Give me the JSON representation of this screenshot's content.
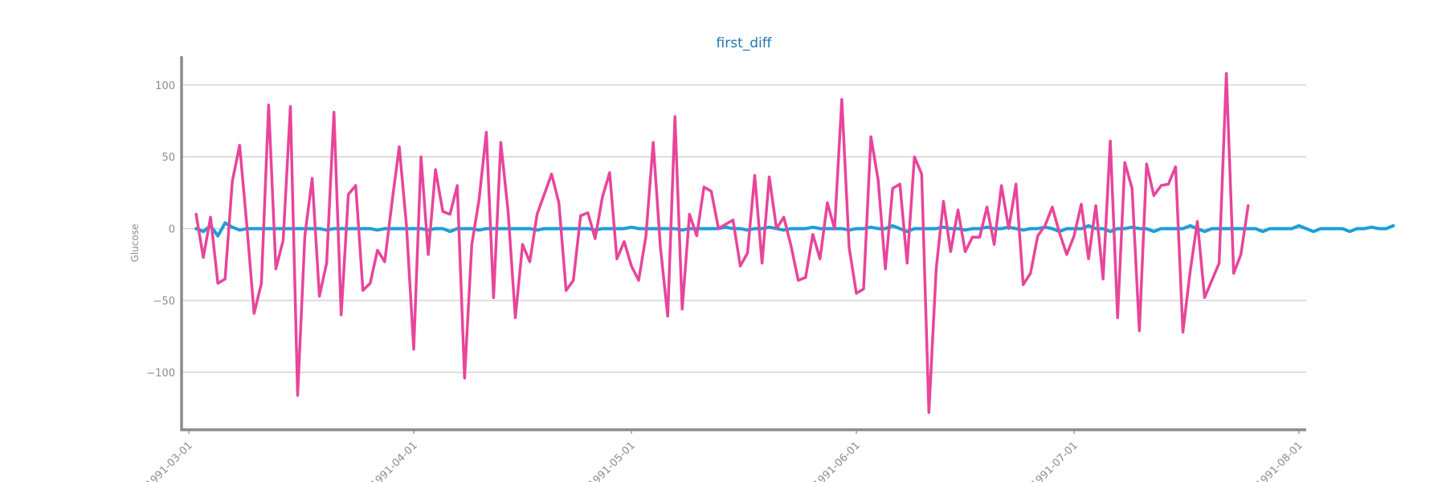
{
  "chart_data": {
    "type": "line",
    "title": "first_diff",
    "xlabel": "",
    "ylabel": "Glucose",
    "grid": true,
    "xlim": [
      "1991-02-28",
      "1991-08-02"
    ],
    "ylim": [
      -140,
      120
    ],
    "x_ticks": [
      "1991-03-01",
      "1991-04-01",
      "1991-05-01",
      "1991-06-01",
      "1991-07-01",
      "1991-08-01"
    ],
    "y_ticks": [
      100,
      50,
      0,
      -50,
      -100
    ],
    "y_tick_labels": [
      "100",
      "50",
      "0",
      "−50",
      "−100"
    ],
    "series": [
      {
        "color": "#1a9fd8",
        "x_start": "1991-03-02",
        "x_step_days": 1,
        "values": [
          0,
          -2,
          2,
          -5,
          4,
          1,
          -1,
          0,
          0,
          0,
          0,
          0,
          0,
          0,
          0,
          0,
          0,
          0,
          -1,
          0,
          0,
          0,
          0,
          0,
          0,
          -1,
          0,
          0,
          0,
          0,
          0,
          0,
          -1,
          0,
          0,
          -2,
          0,
          0,
          0,
          -1,
          0,
          0,
          0,
          0,
          0,
          0,
          0,
          -1,
          0,
          0,
          0,
          0,
          0,
          0,
          0,
          -1,
          0,
          0,
          0,
          0,
          1,
          0,
          0,
          0,
          0,
          0,
          0,
          -1,
          0,
          0,
          0,
          0,
          0,
          1,
          0,
          0,
          -1,
          0,
          0,
          1,
          0,
          -1,
          0,
          0,
          0,
          1,
          0,
          0,
          0,
          0,
          -1,
          0,
          0,
          1,
          0,
          0,
          2,
          0,
          -2,
          0,
          0,
          0,
          0,
          1,
          0,
          0,
          -1,
          0,
          0,
          1,
          0,
          0,
          1,
          0,
          -1,
          0,
          0,
          1,
          0,
          -2,
          0,
          0,
          0,
          2,
          0,
          0,
          -2,
          0,
          0,
          1,
          0,
          0,
          -2,
          0,
          0,
          0,
          0,
          2,
          0,
          -2,
          0,
          0,
          0,
          0,
          0,
          0,
          0,
          -2,
          0,
          0,
          0,
          0,
          2,
          0,
          -2,
          0,
          0,
          0,
          0,
          -2,
          0,
          0,
          1,
          0,
          0,
          2
        ]
      },
      {
        "color": "#e8459b",
        "x_start": "1991-03-02",
        "x_step_days": 1,
        "values": [
          10,
          -20,
          8,
          -38,
          -35,
          33,
          58,
          2,
          -59,
          -38,
          86,
          -28,
          -8,
          85,
          -116,
          -5,
          35,
          -47,
          -24,
          81,
          -60,
          24,
          30,
          -43,
          -38,
          -15,
          -23,
          18,
          57,
          2,
          -84,
          50,
          -18,
          41,
          12,
          10,
          30,
          -104,
          -11,
          20,
          67,
          -48,
          60,
          12,
          -62,
          -11,
          -23,
          10,
          24,
          38,
          18,
          -43,
          -36,
          9,
          11,
          -7,
          22,
          39,
          -21,
          -9,
          -26,
          -36,
          -5,
          60,
          -13,
          -61,
          78,
          -56,
          10,
          -5,
          29,
          26,
          0,
          3,
          6,
          -26,
          -17,
          37,
          -24,
          36,
          0,
          8,
          -12,
          -36,
          -34,
          -4,
          -21,
          18,
          0,
          90,
          -13,
          -45,
          -42,
          64,
          34,
          -28,
          28,
          31,
          -24,
          50,
          38,
          -128,
          -28,
          19,
          -16,
          13,
          -16,
          -6,
          -6,
          15,
          -11,
          30,
          0,
          31,
          -39,
          -31,
          -5,
          2,
          15,
          -3,
          -18,
          -5,
          17,
          -21,
          16,
          -35,
          61,
          -62,
          46,
          28,
          -71,
          45,
          23,
          30,
          31,
          43,
          -72,
          -30,
          5,
          -48,
          -36,
          -24,
          108,
          -31,
          -18,
          16
        ]
      }
    ]
  }
}
